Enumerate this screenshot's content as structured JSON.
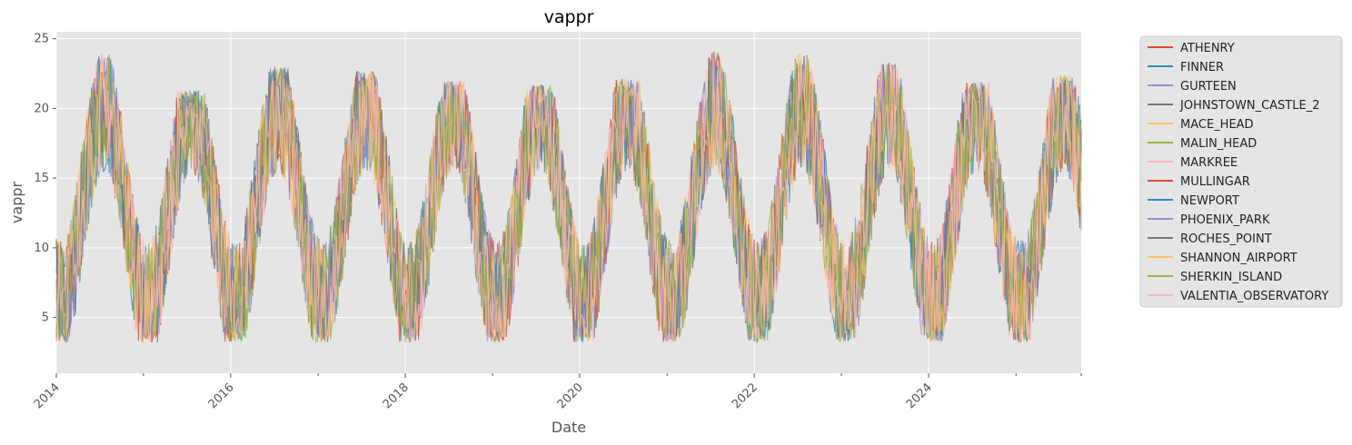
{
  "chart_data": {
    "type": "line",
    "title": "vappr",
    "xlabel": "Date",
    "ylabel": "vappr",
    "x_start": "2014-01-01",
    "x_end": "2025-10-01",
    "xlim": [
      "2014-01-01",
      "2025-10-01"
    ],
    "ylim": [
      1,
      25.5
    ],
    "x_ticks": [
      "2014",
      "2016",
      "2018",
      "2020",
      "2022",
      "2024"
    ],
    "y_ticks": [
      5,
      10,
      15,
      20,
      25
    ],
    "grid": true,
    "legend_position": "outside-right",
    "series": [
      {
        "name": "ATHENRY",
        "color": "#E24A33"
      },
      {
        "name": "FINNER",
        "color": "#348ABD"
      },
      {
        "name": "GURTEEN",
        "color": "#988ED5"
      },
      {
        "name": "JOHNSTOWN_CASTLE_2",
        "color": "#777777"
      },
      {
        "name": "MACE_HEAD",
        "color": "#FBC15E"
      },
      {
        "name": "MALIN_HEAD",
        "color": "#8EBA42"
      },
      {
        "name": "MARKREE",
        "color": "#FFB5B8"
      },
      {
        "name": "MULLINGAR",
        "color": "#E24A33"
      },
      {
        "name": "NEWPORT",
        "color": "#348ABD"
      },
      {
        "name": "PHOENIX_PARK",
        "color": "#988ED5"
      },
      {
        "name": "ROCHES_POINT",
        "color": "#777777"
      },
      {
        "name": "SHANNON_AIRPORT",
        "color": "#FBC15E"
      },
      {
        "name": "SHERKIN_ISLAND",
        "color": "#8EBA42"
      },
      {
        "name": "VALENTIA_OBSERVATORY",
        "color": "#FFB5B8"
      }
    ],
    "seasonal_cycle": {
      "summer_peak_approx": 20,
      "winter_trough_approx": 6,
      "annual_max_approx": [
        24,
        21.3,
        23,
        22.7,
        22,
        21.7,
        22.2,
        24.5,
        24.1,
        23.3,
        21.9,
        22.4
      ],
      "min_approx": 2
    }
  }
}
